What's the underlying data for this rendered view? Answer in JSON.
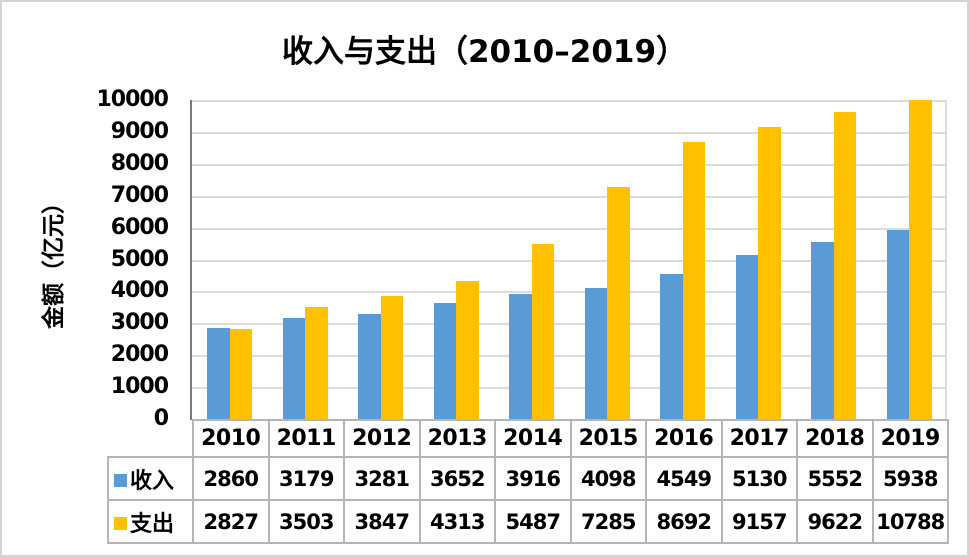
{
  "chart_data": {
    "type": "bar",
    "title": "收入与支出（2010–2019）",
    "ylabel": "金额（亿元）",
    "xlabel": "",
    "categories": [
      "2010",
      "2011",
      "2012",
      "2013",
      "2014",
      "2015",
      "2016",
      "2017",
      "2018",
      "2019"
    ],
    "series": [
      {
        "key": "income",
        "name": "收入",
        "color": "#5B9BD5",
        "values": [
          2860,
          3179,
          3281,
          3652,
          3916,
          4098,
          4549,
          5130,
          5552,
          5938
        ]
      },
      {
        "key": "expense",
        "name": "支出",
        "color": "#FFC000",
        "values": [
          2827,
          3503,
          3847,
          4313,
          5487,
          7285,
          8692,
          9157,
          9622,
          10788
        ]
      }
    ],
    "ylim": [
      0,
      10000
    ],
    "y_ticks": [
      0,
      1000,
      2000,
      3000,
      4000,
      5000,
      6000,
      7000,
      8000,
      9000,
      10000
    ],
    "grid": true,
    "bars_clipped_at_ymax": true,
    "legend_position": "data-table-row-headers",
    "data_table": true
  },
  "colors": {
    "income": "#5B9BD5",
    "expense": "#FFC000",
    "gridline": "#DCDCDC",
    "axis_line": "#7A7A7A",
    "table_border": "#B5B5B5",
    "text": "#000000",
    "background": "#FFFFFF",
    "frame_border": "#D4D4D4"
  }
}
